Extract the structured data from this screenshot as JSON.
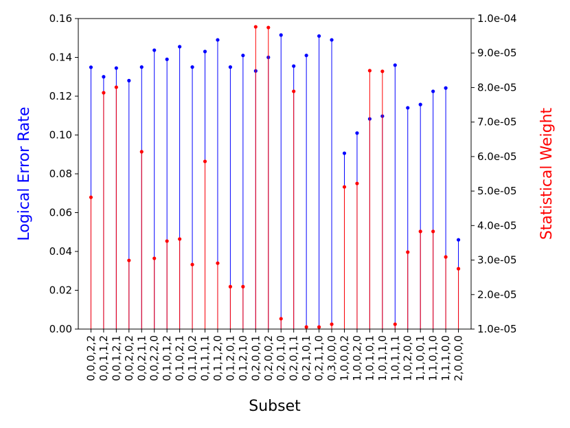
{
  "chart_data": {
    "type": "stem",
    "xlabel": "Subset",
    "ylabel": "Logical Error Rate",
    "y2label": "Statistical Weight",
    "ylabel_color": "blue",
    "y2label_color": "red",
    "categories": [
      "0,0,0,2,2",
      "0,0,1,1,2",
      "0,0,1,2,1",
      "0,0,2,0,2",
      "0,0,2,1,1",
      "0,0,2,2,0",
      "0,1,0,1,2",
      "0,1,0,2,1",
      "0,1,1,0,2",
      "0,1,1,1,1",
      "0,1,1,2,0",
      "0,1,2,0,1",
      "0,1,2,1,0",
      "0,2,0,0,1",
      "0,2,0,0,2",
      "0,2,0,1,0",
      "0,2,0,1,1",
      "0,2,1,0,1",
      "0,2,1,1,0",
      "0,3,0,0,0",
      "1,0,0,0,2",
      "1,0,0,2,0",
      "1,0,1,0,1",
      "1,0,1,1,0",
      "1,0,1,1,1",
      "1,0,2,0,0",
      "1,1,0,0,1",
      "1,1,0,1,0",
      "1,1,1,0,0",
      "2,0,0,0,0"
    ],
    "series": [
      {
        "color": "blue",
        "axis": "y",
        "values": [
          0.1349,
          0.13,
          0.1345,
          0.128,
          0.135,
          0.1437,
          0.139,
          0.1455,
          0.135,
          0.143,
          0.149,
          0.135,
          0.141,
          0.133,
          0.14,
          0.1515,
          0.1355,
          0.141,
          0.151,
          0.149,
          0.0906,
          0.101,
          0.1083,
          0.1097,
          0.136,
          0.114,
          0.1157,
          0.1225,
          0.1242,
          0.046
        ]
      },
      {
        "color": "red",
        "axis": "y2",
        "values": [
          4.82e-05,
          7.85e-05,
          8.01e-05,
          2.99e-05,
          6.14e-05,
          3.05e-05,
          3.55e-05,
          3.61e-05,
          2.87e-05,
          5.86e-05,
          2.91e-05,
          2.23e-05,
          2.23e-05,
          9.76e-05,
          9.74e-05,
          1.3e-05,
          7.89e-05,
          1.06e-05,
          1.06e-05,
          1.14e-05,
          5.12e-05,
          5.22e-05,
          8.49e-05,
          8.47e-05,
          1.14e-05,
          3.23e-05,
          3.83e-05,
          3.83e-05,
          3.09e-05,
          2.75e-05
        ]
      }
    ],
    "ylim": [
      0,
      0.16
    ],
    "yticks": [
      {
        "value": 0,
        "label": "0.00"
      },
      {
        "value": 0.02,
        "label": "0.02"
      },
      {
        "value": 0.04,
        "label": "0.04"
      },
      {
        "value": 0.06,
        "label": "0.06"
      },
      {
        "value": 0.08,
        "label": "0.08"
      },
      {
        "value": 0.1,
        "label": "0.10"
      },
      {
        "value": 0.12,
        "label": "0.12"
      },
      {
        "value": 0.14,
        "label": "0.14"
      },
      {
        "value": 0.16,
        "label": "0.16"
      }
    ],
    "y2lim": [
      1e-05,
      0.0001
    ],
    "y2ticks": [
      {
        "value": 1e-05,
        "label": "1.0e-05"
      },
      {
        "value": 2e-05,
        "label": "2.0e-05"
      },
      {
        "value": 3e-05,
        "label": "3.0e-05"
      },
      {
        "value": 4e-05,
        "label": "4.0e-05"
      },
      {
        "value": 5e-05,
        "label": "5.0e-05"
      },
      {
        "value": 6e-05,
        "label": "6.0e-05"
      },
      {
        "value": 7e-05,
        "label": "7.0e-05"
      },
      {
        "value": 8e-05,
        "label": "8.0e-05"
      },
      {
        "value": 9e-05,
        "label": "9.0e-05"
      },
      {
        "value": 0.0001,
        "label": "1.0e-04"
      }
    ],
    "grid": false
  }
}
